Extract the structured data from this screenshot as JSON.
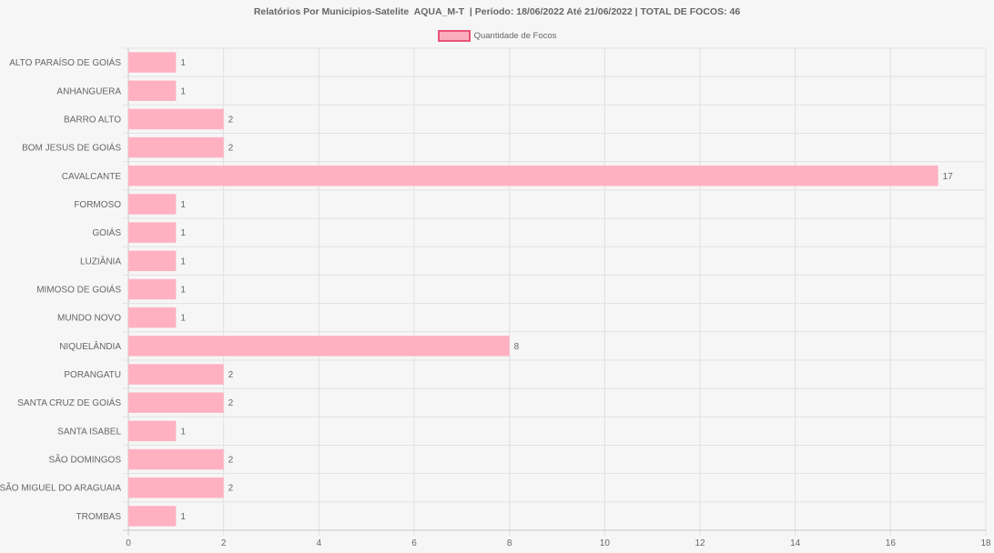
{
  "chart_data": {
    "type": "bar",
    "orientation": "horizontal",
    "title": "Relatórios Por Municipios-Satelite  AQUA_M-T  | Período: 18/06/2022 Até 21/06/2022 | TOTAL DE FOCOS: 46",
    "categories": [
      "ALTO PARAÍSO DE GOIÁS",
      "ANHANGUERA",
      "BARRO ALTO",
      "BOM JESUS DE GOIÁS",
      "CAVALCANTE",
      "FORMOSO",
      "GOIÁS",
      "LUZIÂNIA",
      "MIMOSO DE GOIÁS",
      "MUNDO NOVO",
      "NIQUELÂNDIA",
      "PORANGATU",
      "SANTA CRUZ DE GOIÁS",
      "SANTA ISABEL",
      "SÃO DOMINGOS",
      "SÃO MIGUEL DO ARAGUAIA",
      "TROMBAS"
    ],
    "series": [
      {
        "name": "Quantidade de Focos",
        "values": [
          1,
          1,
          2,
          2,
          17,
          1,
          1,
          1,
          1,
          1,
          8,
          2,
          2,
          1,
          2,
          2,
          1
        ],
        "color": "#ffb1c1",
        "border_color": "#e85476"
      }
    ],
    "xlim": [
      0,
      18
    ],
    "x_ticks": [
      "0",
      "2",
      "4",
      "6",
      "8",
      "10",
      "12",
      "14",
      "16",
      "18"
    ],
    "grid": true,
    "legend_position": "top-center",
    "data_labels": true
  }
}
